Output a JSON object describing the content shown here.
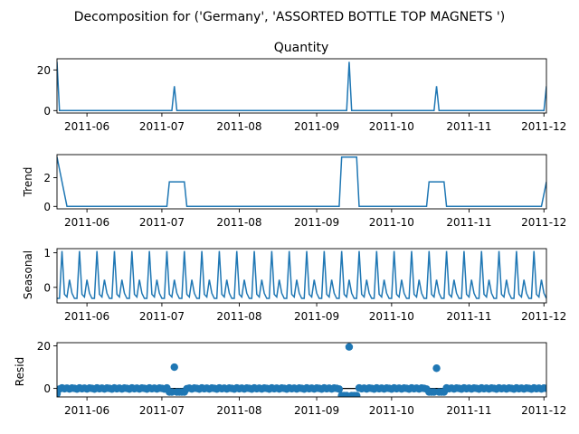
{
  "figure": {
    "suptitle": "Decomposition for ('Germany', 'ASSORTED BOTTLE TOP  MAGNETS ')",
    "line_color": "#1f77b4"
  },
  "chart_data": [
    {
      "type": "line",
      "name": "observed",
      "title": "Quantity",
      "ylabel": "",
      "x_range": [
        "2011-05-20",
        "2011-12-02"
      ],
      "ylim": [
        -1.2,
        25.5
      ],
      "yticks": [
        0,
        20
      ],
      "xticks": [
        "2011-06-01",
        "2011-07-01",
        "2011-08-01",
        "2011-09-01",
        "2011-10-01",
        "2011-11-01",
        "2011-12-01"
      ],
      "xtick_labels": [
        "2011-06",
        "2011-07",
        "2011-08",
        "2011-09",
        "2011-10",
        "2011-11",
        "2011-12"
      ],
      "baseline": 0,
      "start_value": 24,
      "spikes": [
        {
          "date": "2011-07-06",
          "value": 12
        },
        {
          "date": "2011-09-14",
          "value": 24
        },
        {
          "date": "2011-10-19",
          "value": 12
        },
        {
          "date": "2011-12-02",
          "value": 12
        }
      ]
    },
    {
      "type": "line",
      "name": "trend",
      "title": "",
      "ylabel": "Trend",
      "x_range": [
        "2011-05-20",
        "2011-12-02"
      ],
      "ylim": [
        -0.17,
        3.6
      ],
      "yticks": [
        0,
        2
      ],
      "xticks": [
        "2011-06-01",
        "2011-07-01",
        "2011-08-01",
        "2011-09-01",
        "2011-10-01",
        "2011-11-01",
        "2011-12-01"
      ],
      "xtick_labels": [
        "2011-06",
        "2011-07",
        "2011-08",
        "2011-09",
        "2011-10",
        "2011-11",
        "2011-12"
      ],
      "points": [
        [
          "2011-05-20",
          3.43
        ],
        [
          "2011-05-24",
          0
        ],
        [
          "2011-07-03",
          0
        ],
        [
          "2011-07-04",
          1.71
        ],
        [
          "2011-07-10",
          1.71
        ],
        [
          "2011-07-11",
          0
        ],
        [
          "2011-09-10",
          0
        ],
        [
          "2011-09-11",
          3.43
        ],
        [
          "2011-09-17",
          3.43
        ],
        [
          "2011-09-18",
          0
        ],
        [
          "2011-10-15",
          0
        ],
        [
          "2011-10-16",
          1.71
        ],
        [
          "2011-10-22",
          1.71
        ],
        [
          "2011-10-23",
          0
        ],
        [
          "2011-11-30",
          0
        ],
        [
          "2011-12-02",
          1.71
        ]
      ]
    },
    {
      "type": "line",
      "name": "seasonal",
      "title": "",
      "ylabel": "Seasonal",
      "x_range": [
        "2011-05-20",
        "2011-12-02"
      ],
      "ylim": [
        -0.45,
        1.12
      ],
      "yticks": [
        0,
        1
      ],
      "xticks": [
        "2011-06-01",
        "2011-07-01",
        "2011-08-01",
        "2011-09-01",
        "2011-10-01",
        "2011-11-01",
        "2011-12-01"
      ],
      "xtick_labels": [
        "2011-06",
        "2011-07",
        "2011-08",
        "2011-09",
        "2011-10",
        "2011-11",
        "2011-12"
      ],
      "period_days": 7,
      "first_peak": "2011-05-29",
      "weekly_pattern": [
        1.05,
        -0.2,
        -0.28,
        0.22,
        -0.17,
        -0.32,
        -0.32
      ]
    },
    {
      "type": "scatter",
      "name": "resid",
      "title": "",
      "ylabel": "Resid",
      "x_range": [
        "2011-05-20",
        "2011-12-02"
      ],
      "ylim": [
        -4,
        21.5
      ],
      "yticks": [
        0,
        20
      ],
      "xticks": [
        "2011-06-01",
        "2011-07-01",
        "2011-08-01",
        "2011-09-01",
        "2011-10-01",
        "2011-11-01",
        "2011-12-01"
      ],
      "xtick_labels": [
        "2011-06",
        "2011-07",
        "2011-08",
        "2011-09",
        "2011-10",
        "2011-11",
        "2011-12"
      ],
      "baseline": 0,
      "outliers": [
        {
          "date": "2011-05-20",
          "value": -2.5
        },
        {
          "date": "2011-07-06",
          "value": 10
        },
        {
          "date": "2011-09-14",
          "value": 19.5
        },
        {
          "date": "2011-10-19",
          "value": 9.5
        }
      ],
      "depressed_windows": [
        {
          "from": "2011-07-04",
          "to": "2011-07-10",
          "value": -1.7
        },
        {
          "from": "2011-09-11",
          "to": "2011-09-17",
          "value": -3.4
        },
        {
          "from": "2011-10-16",
          "to": "2011-10-22",
          "value": -1.7
        }
      ]
    }
  ]
}
